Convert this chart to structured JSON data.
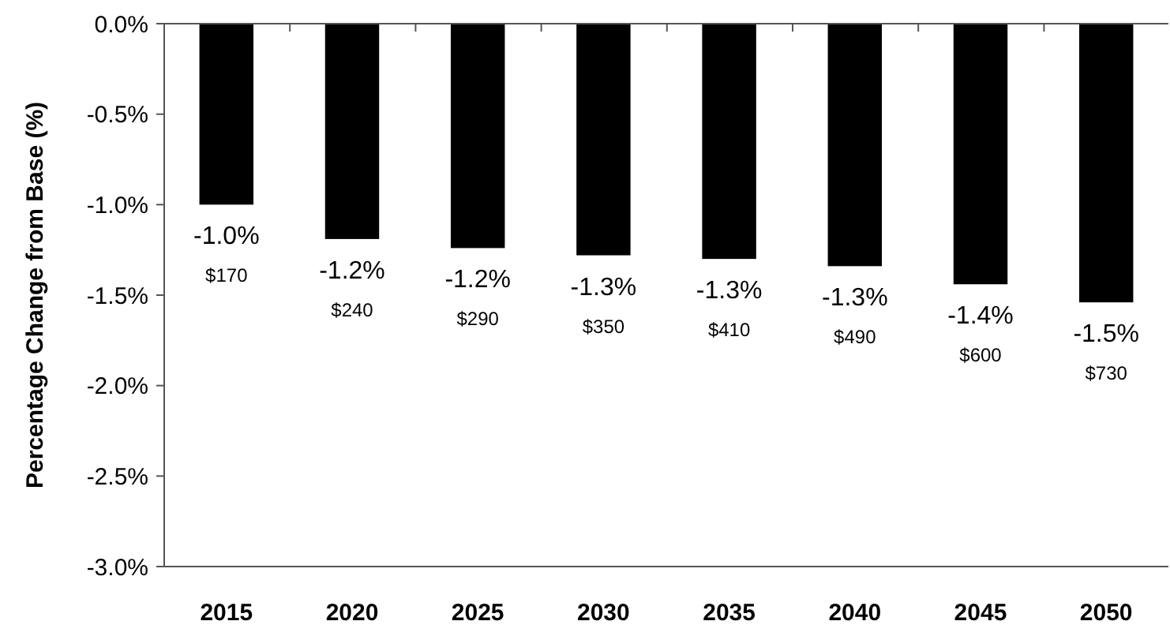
{
  "chart_data": {
    "type": "bar",
    "ylabel": "Percentage Change from Base (%)",
    "categories": [
      "2015",
      "2020",
      "2025",
      "2030",
      "2035",
      "2040",
      "2045",
      "2050"
    ],
    "values": [
      -1.0,
      -1.19,
      -1.24,
      -1.28,
      -1.3,
      -1.34,
      -1.44,
      -1.54
    ],
    "color": "#000000",
    "value_labels": [
      "-1.0%",
      "-1.2%",
      "-1.2%",
      "-1.3%",
      "-1.3%",
      "-1.3%",
      "-1.4%",
      "-1.5%"
    ],
    "annotations": [
      "$170",
      "$240",
      "$290",
      "$350",
      "$410",
      "$490",
      "$600",
      "$730"
    ],
    "ylim": [
      -3.0,
      0.0
    ],
    "yticks": [
      {
        "value": 0,
        "label": "0.0%"
      },
      {
        "value": -0.5,
        "label": "-0.5%"
      },
      {
        "value": -1.0,
        "label": "-1.0%"
      },
      {
        "value": -1.5,
        "label": "-1.5%"
      },
      {
        "value": -2.0,
        "label": "-2.0%"
      },
      {
        "value": -2.5,
        "label": "-2.5%"
      },
      {
        "value": -3.0,
        "label": "-3.0%"
      }
    ],
    "grid": false
  }
}
